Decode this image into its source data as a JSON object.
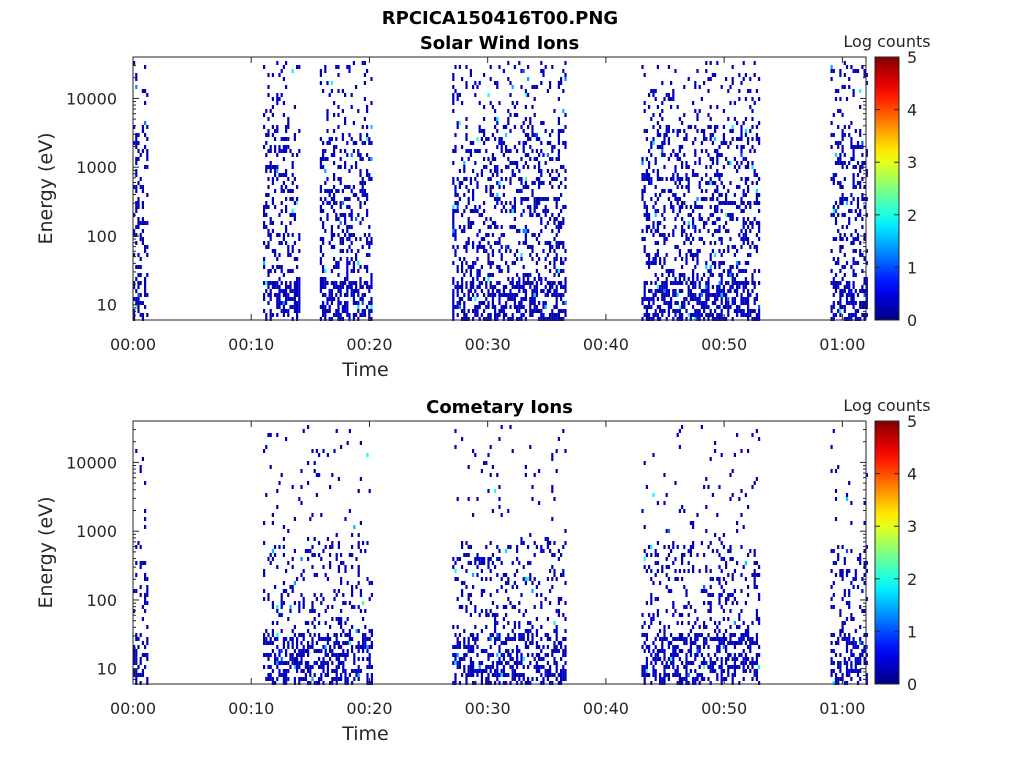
{
  "figure_title": "RPCICA150416T00.PNG",
  "chart_data": [
    {
      "type": "heatmap",
      "title": "Solar Wind Ions",
      "xlabel": "Time",
      "ylabel": "Energy (eV)",
      "y_scale": "log",
      "ylim": [
        6,
        40000
      ],
      "xlim_minutes": [
        0,
        62
      ],
      "x_ticks": [
        "00:00",
        "00:10",
        "00:20",
        "00:30",
        "00:40",
        "00:50",
        "01:00"
      ],
      "x_tick_minutes": [
        0,
        10,
        20,
        30,
        40,
        50,
        60
      ],
      "y_ticks": [
        "10",
        "100",
        "1000",
        "10000"
      ],
      "y_tick_values": [
        10,
        100,
        1000,
        10000
      ],
      "colorbar": {
        "label": "Log counts",
        "min": 0,
        "max": 5,
        "ticks": [
          "0",
          "1",
          "2",
          "3",
          "4",
          "5"
        ]
      },
      "activity_intervals_minutes": [
        [
          0,
          1.3
        ],
        [
          11,
          14
        ],
        [
          15.8,
          20.2
        ],
        [
          27,
          36.5
        ],
        [
          43,
          53
        ],
        [
          59,
          62
        ]
      ],
      "typical_log_counts": 0.3
    },
    {
      "type": "heatmap",
      "title": "Cometary Ions",
      "xlabel": "Time",
      "ylabel": "Energy (eV)",
      "y_scale": "log",
      "ylim": [
        6,
        40000
      ],
      "xlim_minutes": [
        0,
        62
      ],
      "x_ticks": [
        "00:00",
        "00:10",
        "00:20",
        "00:30",
        "00:40",
        "00:50",
        "01:00"
      ],
      "x_tick_minutes": [
        0,
        10,
        20,
        30,
        40,
        50,
        60
      ],
      "y_ticks": [
        "10",
        "100",
        "1000",
        "10000"
      ],
      "y_tick_values": [
        10,
        100,
        1000,
        10000
      ],
      "colorbar": {
        "label": "Log counts",
        "min": 0,
        "max": 5,
        "ticks": [
          "0",
          "1",
          "2",
          "3",
          "4",
          "5"
        ]
      },
      "activity_intervals_minutes": [
        [
          0,
          1.3
        ],
        [
          11,
          20.2
        ],
        [
          27,
          36.5
        ],
        [
          43,
          53
        ],
        [
          59,
          62
        ]
      ],
      "typical_log_counts": 0.3
    }
  ]
}
